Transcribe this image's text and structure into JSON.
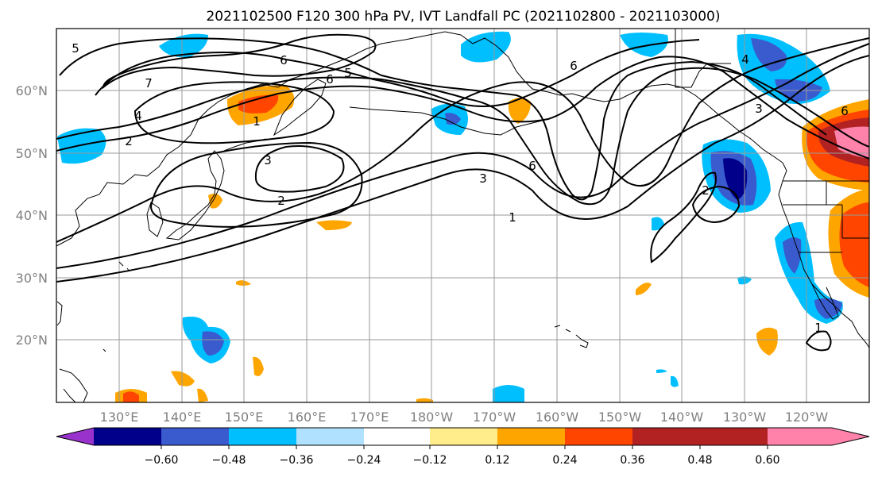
{
  "title": "2021102500 F120 300 hPa PV, IVT Landfall PC (2021102800 - 2021103000)",
  "lat_labels": [
    "60°N",
    "50°N",
    "40°N",
    "30°N",
    "20°N"
  ],
  "lon_labels": [
    "130°E",
    "140°E",
    "150°E",
    "160°E",
    "170°E",
    "180°W",
    "170°W",
    "160°W",
    "150°W",
    "140°W",
    "130°W",
    "120°W"
  ],
  "colorbar": {
    "tick_labels": [
      "−0.60",
      "−0.48",
      "−0.36",
      "−0.24",
      "−0.12",
      "0.12",
      "0.24",
      "0.36",
      "0.48",
      "0.60"
    ],
    "colors": [
      "#9932cc",
      "#00008b",
      "#3a5bcd",
      "#00bfff",
      "#b0e2ff",
      "#ffffff",
      "#ffec8b",
      "#ffa500",
      "#ff4500",
      "#b22222",
      "#ff82ab"
    ]
  },
  "contour_labels": [
    "5",
    "6",
    "7",
    "5",
    "4",
    "6",
    "2",
    "1",
    "3",
    "2",
    "4",
    "3",
    "6",
    "3",
    "1",
    "6",
    "2",
    "6",
    "1"
  ]
}
